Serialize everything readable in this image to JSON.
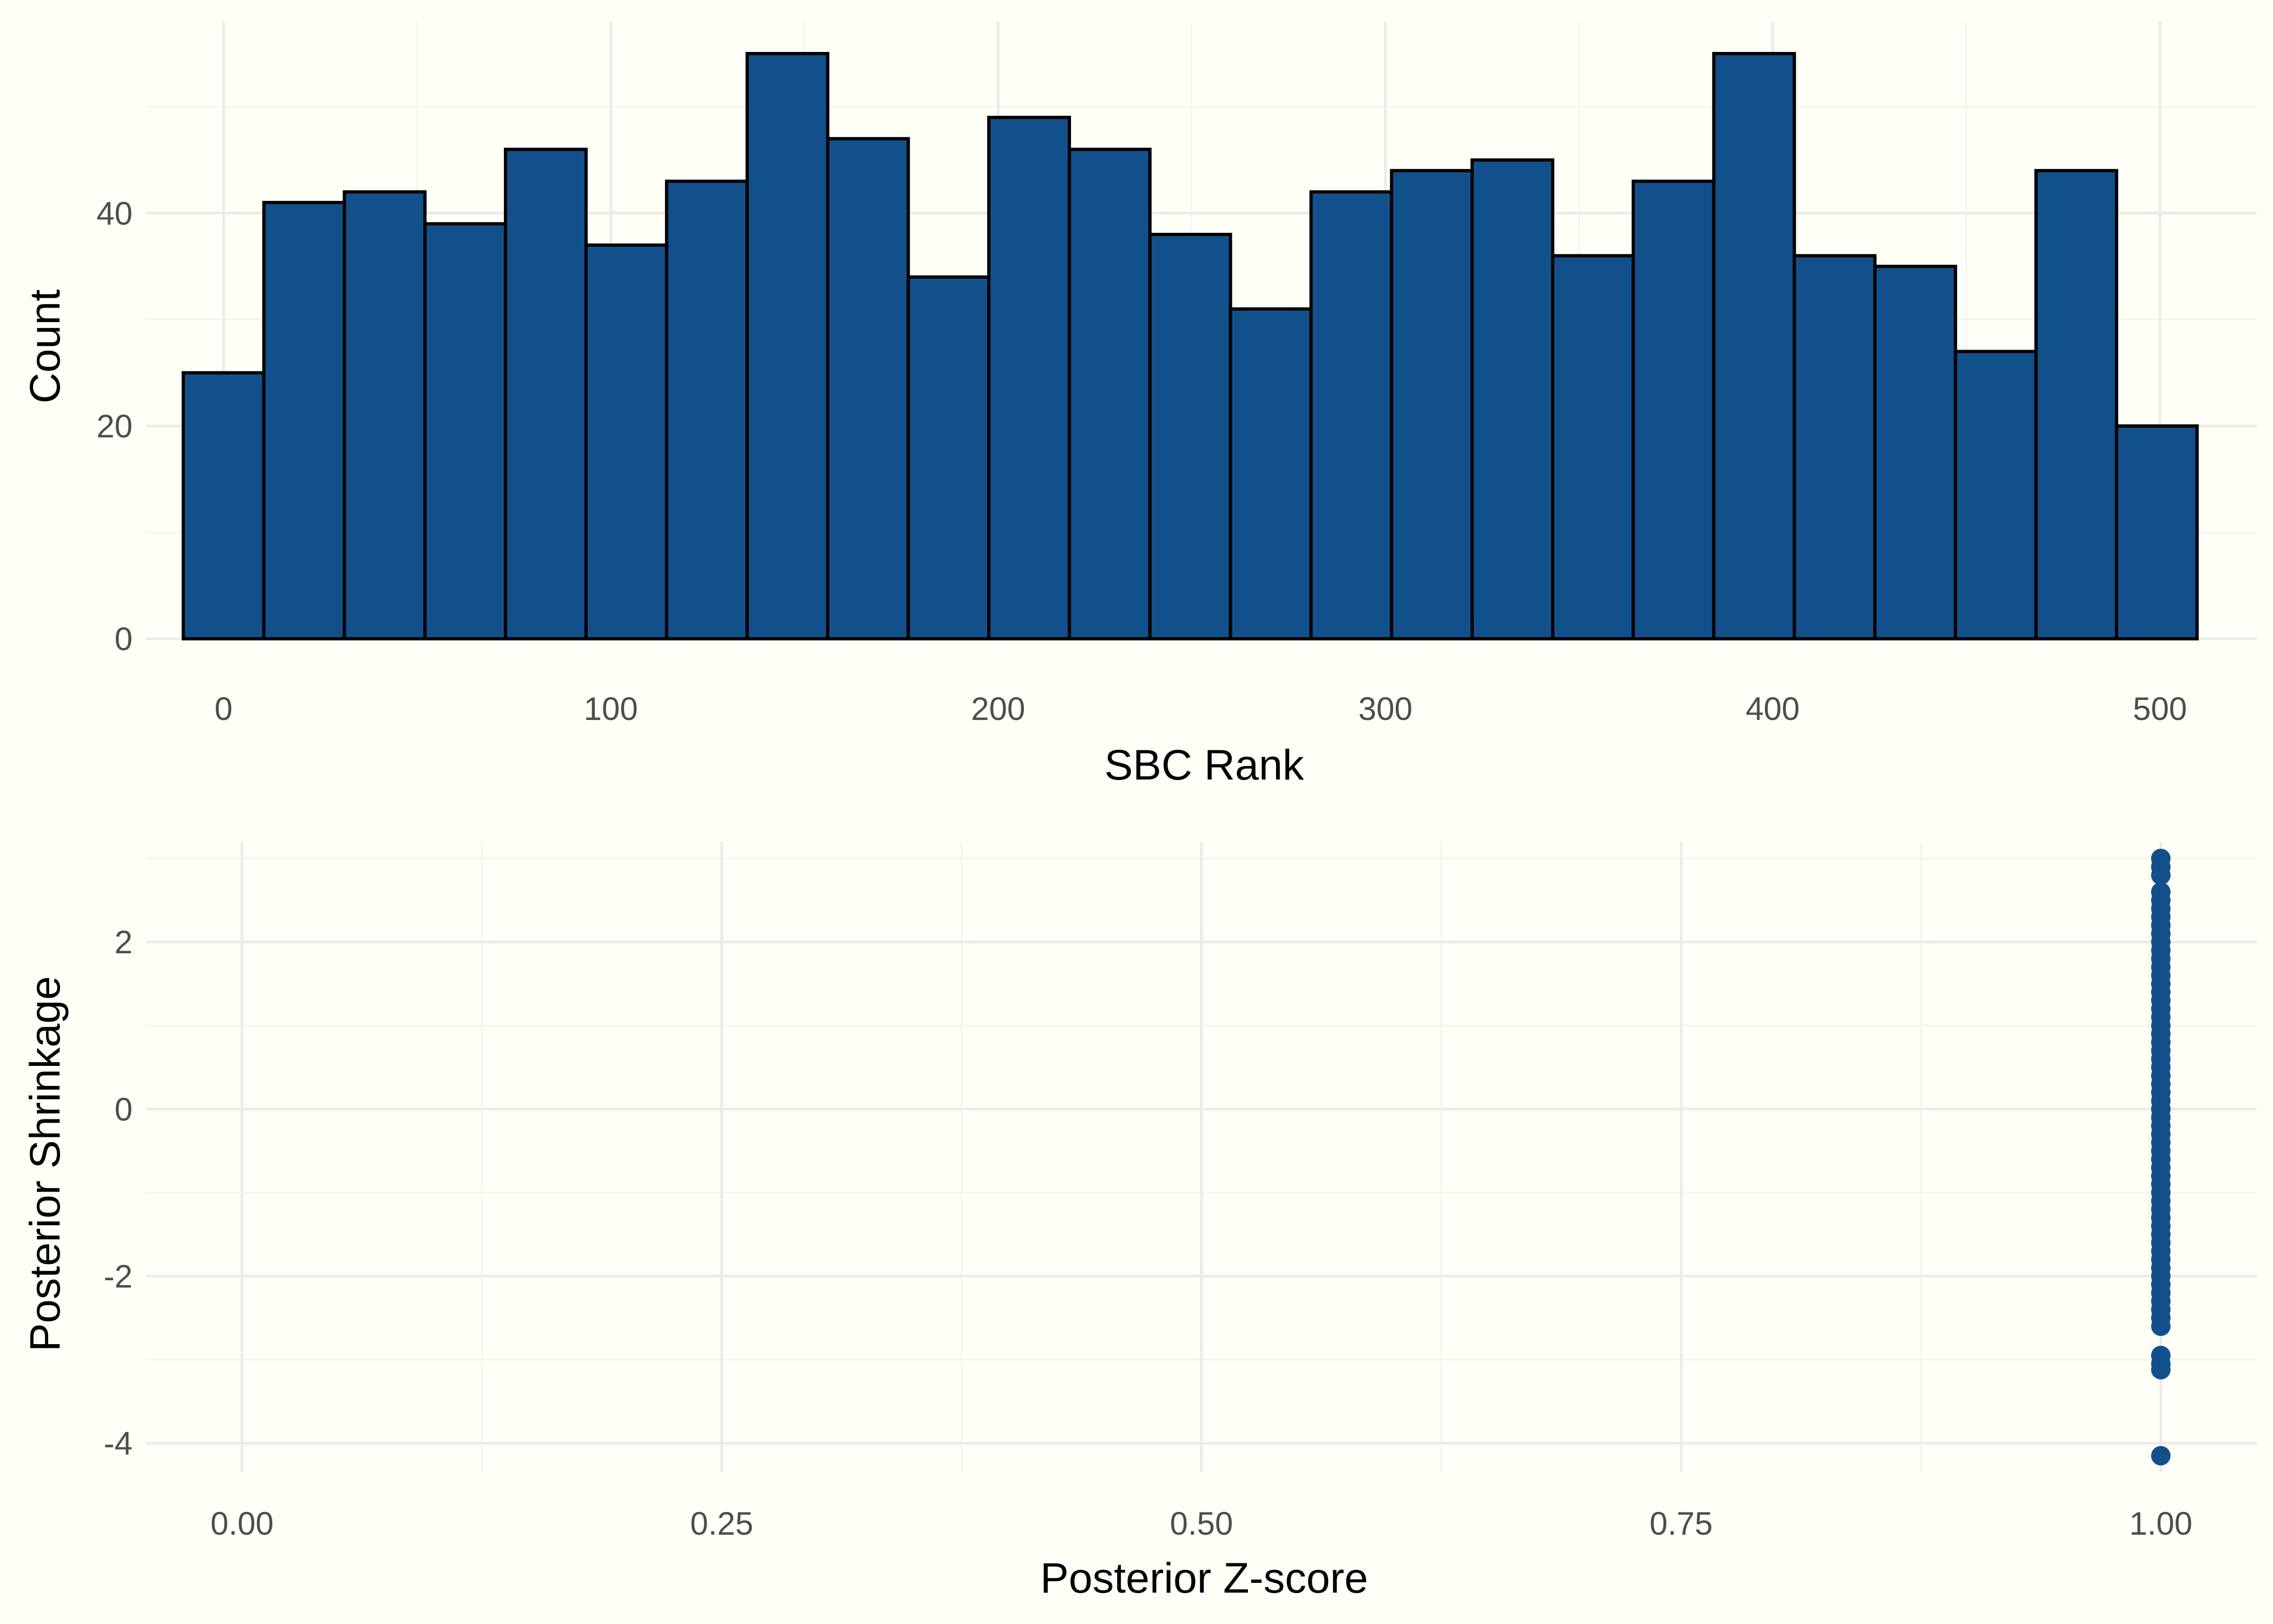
{
  "background": "#fffff8",
  "colors": {
    "bar_fill": "#12508b",
    "bar_outline": "#000000",
    "point": "#12508b",
    "grid_major": "#ebebeb",
    "grid_minor": "#f3f3f3",
    "tick_text": "#4d4d4d",
    "title_text": "#000000"
  },
  "chart_data": [
    {
      "type": "bar",
      "subtype": "histogram",
      "title": "",
      "xlabel": "SBC Rank",
      "ylabel": "Count",
      "bin_width": 20.8,
      "bin_centers": [
        0,
        20.8,
        41.6,
        62.4,
        83.2,
        104,
        124.8,
        145.6,
        166.4,
        187.2,
        208,
        228.8,
        249.6,
        270.4,
        291.2,
        312,
        332.8,
        353.6,
        374.4,
        395.2,
        416,
        436.8,
        457.6,
        478.4,
        499.2
      ],
      "values": [
        25,
        41,
        42,
        39,
        46,
        37,
        43,
        55,
        47,
        34,
        49,
        46,
        38,
        31,
        42,
        44,
        45,
        36,
        43,
        55,
        36,
        35,
        27,
        44,
        20
      ],
      "xlim": [
        -20,
        525
      ],
      "ylim": [
        0,
        58
      ],
      "x_ticks": [
        0,
        100,
        200,
        300,
        400,
        500
      ],
      "x_tick_labels": [
        "0",
        "100",
        "200",
        "300",
        "400",
        "500"
      ],
      "x_minor_ticks": [
        50,
        150,
        250,
        350,
        450
      ],
      "y_ticks": [
        0,
        20,
        40
      ],
      "y_tick_labels": [
        "0",
        "20",
        "40"
      ],
      "y_minor_ticks": [
        10,
        30,
        50
      ],
      "grid": true
    },
    {
      "type": "scatter",
      "title": "",
      "xlabel": "Posterior Z-score",
      "ylabel": "Posterior Shrinkage",
      "xlim": [
        -0.05,
        1.05
      ],
      "ylim": [
        -4.35,
        3.2
      ],
      "x_ticks": [
        0,
        0.25,
        0.5,
        0.75,
        1
      ],
      "x_tick_labels": [
        "0.00",
        "0.25",
        "0.50",
        "0.75",
        "1.00"
      ],
      "x_minor_ticks": [
        0.125,
        0.375,
        0.625,
        0.875
      ],
      "y_ticks": [
        -4,
        -2,
        0,
        2
      ],
      "y_tick_labels": [
        "-4",
        "-2",
        "0",
        "2"
      ],
      "y_minor_ticks": [
        -3,
        -1,
        1,
        3
      ],
      "grid": true,
      "points": [
        {
          "x": 1,
          "y": 3.0
        },
        {
          "x": 1,
          "y": 2.9
        },
        {
          "x": 1,
          "y": 2.8
        },
        {
          "x": 1,
          "y": 2.6
        },
        {
          "x": 1,
          "y": 2.5
        },
        {
          "x": 1,
          "y": 2.4
        },
        {
          "x": 1,
          "y": 2.3
        },
        {
          "x": 1,
          "y": 2.2
        },
        {
          "x": 1,
          "y": 2.1
        },
        {
          "x": 1,
          "y": 2.0
        },
        {
          "x": 1,
          "y": 1.9
        },
        {
          "x": 1,
          "y": 1.8
        },
        {
          "x": 1,
          "y": 1.7
        },
        {
          "x": 1,
          "y": 1.6
        },
        {
          "x": 1,
          "y": 1.5
        },
        {
          "x": 1,
          "y": 1.4
        },
        {
          "x": 1,
          "y": 1.3
        },
        {
          "x": 1,
          "y": 1.2
        },
        {
          "x": 1,
          "y": 1.1
        },
        {
          "x": 1,
          "y": 1.0
        },
        {
          "x": 1,
          "y": 0.9
        },
        {
          "x": 1,
          "y": 0.8
        },
        {
          "x": 1,
          "y": 0.7
        },
        {
          "x": 1,
          "y": 0.6
        },
        {
          "x": 1,
          "y": 0.5
        },
        {
          "x": 1,
          "y": 0.4
        },
        {
          "x": 1,
          "y": 0.3
        },
        {
          "x": 1,
          "y": 0.2
        },
        {
          "x": 1,
          "y": 0.1
        },
        {
          "x": 1,
          "y": 0.0
        },
        {
          "x": 1,
          "y": -0.1
        },
        {
          "x": 1,
          "y": -0.2
        },
        {
          "x": 1,
          "y": -0.3
        },
        {
          "x": 1,
          "y": -0.4
        },
        {
          "x": 1,
          "y": -0.5
        },
        {
          "x": 1,
          "y": -0.6
        },
        {
          "x": 1,
          "y": -0.7
        },
        {
          "x": 1,
          "y": -0.8
        },
        {
          "x": 1,
          "y": -0.9
        },
        {
          "x": 1,
          "y": -1.0
        },
        {
          "x": 1,
          "y": -1.1
        },
        {
          "x": 1,
          "y": -1.2
        },
        {
          "x": 1,
          "y": -1.3
        },
        {
          "x": 1,
          "y": -1.4
        },
        {
          "x": 1,
          "y": -1.5
        },
        {
          "x": 1,
          "y": -1.6
        },
        {
          "x": 1,
          "y": -1.7
        },
        {
          "x": 1,
          "y": -1.8
        },
        {
          "x": 1,
          "y": -1.9
        },
        {
          "x": 1,
          "y": -2.0
        },
        {
          "x": 1,
          "y": -2.1
        },
        {
          "x": 1,
          "y": -2.2
        },
        {
          "x": 1,
          "y": -2.3
        },
        {
          "x": 1,
          "y": -2.4
        },
        {
          "x": 1,
          "y": -2.5
        },
        {
          "x": 1,
          "y": -2.6
        },
        {
          "x": 1,
          "y": -2.95
        },
        {
          "x": 1,
          "y": -3.05
        },
        {
          "x": 1,
          "y": -3.12
        },
        {
          "x": 1,
          "y": -4.15
        }
      ]
    }
  ]
}
